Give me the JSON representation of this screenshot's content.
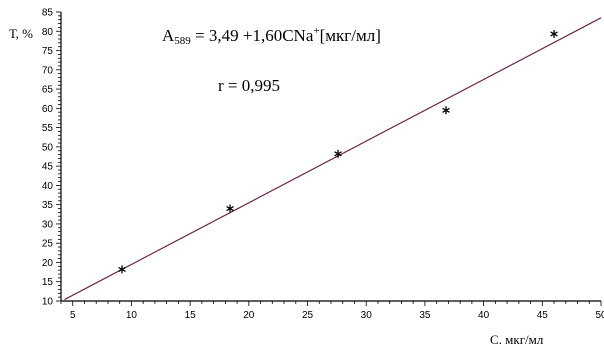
{
  "chart_data": {
    "type": "scatter",
    "xlabel": "С. мкг/мл",
    "ylabel": "Т, %",
    "xlim": [
      4,
      50
    ],
    "ylim": [
      10,
      85
    ],
    "x_ticks": [
      5,
      10,
      15,
      20,
      25,
      30,
      35,
      40,
      45,
      50
    ],
    "y_ticks": [
      10,
      15,
      20,
      25,
      30,
      35,
      40,
      45,
      50,
      55,
      60,
      65,
      70,
      75,
      80,
      85
    ],
    "grid": false,
    "series": [
      {
        "marker": "asterisk",
        "points": [
          {
            "x": 9.2,
            "y": 18.2
          },
          {
            "x": 18.4,
            "y": 34.0
          },
          {
            "x": 27.6,
            "y": 48.2
          },
          {
            "x": 36.8,
            "y": 59.5
          },
          {
            "x": 46.0,
            "y": 79.3
          }
        ]
      }
    ],
    "fit_line": {
      "intercept": 3.49,
      "slope": 1.6,
      "x_range": [
        4.3,
        50
      ],
      "color": "#6b2a4a"
    },
    "annotations": {
      "equation_prefix": "A",
      "equation_subscript": "589",
      "equation_body": " = 3,49 +1,60CNa",
      "equation_superscript": "+",
      "equation_suffix": "[мкг/мл]",
      "r_text": "r = 0,995"
    }
  }
}
